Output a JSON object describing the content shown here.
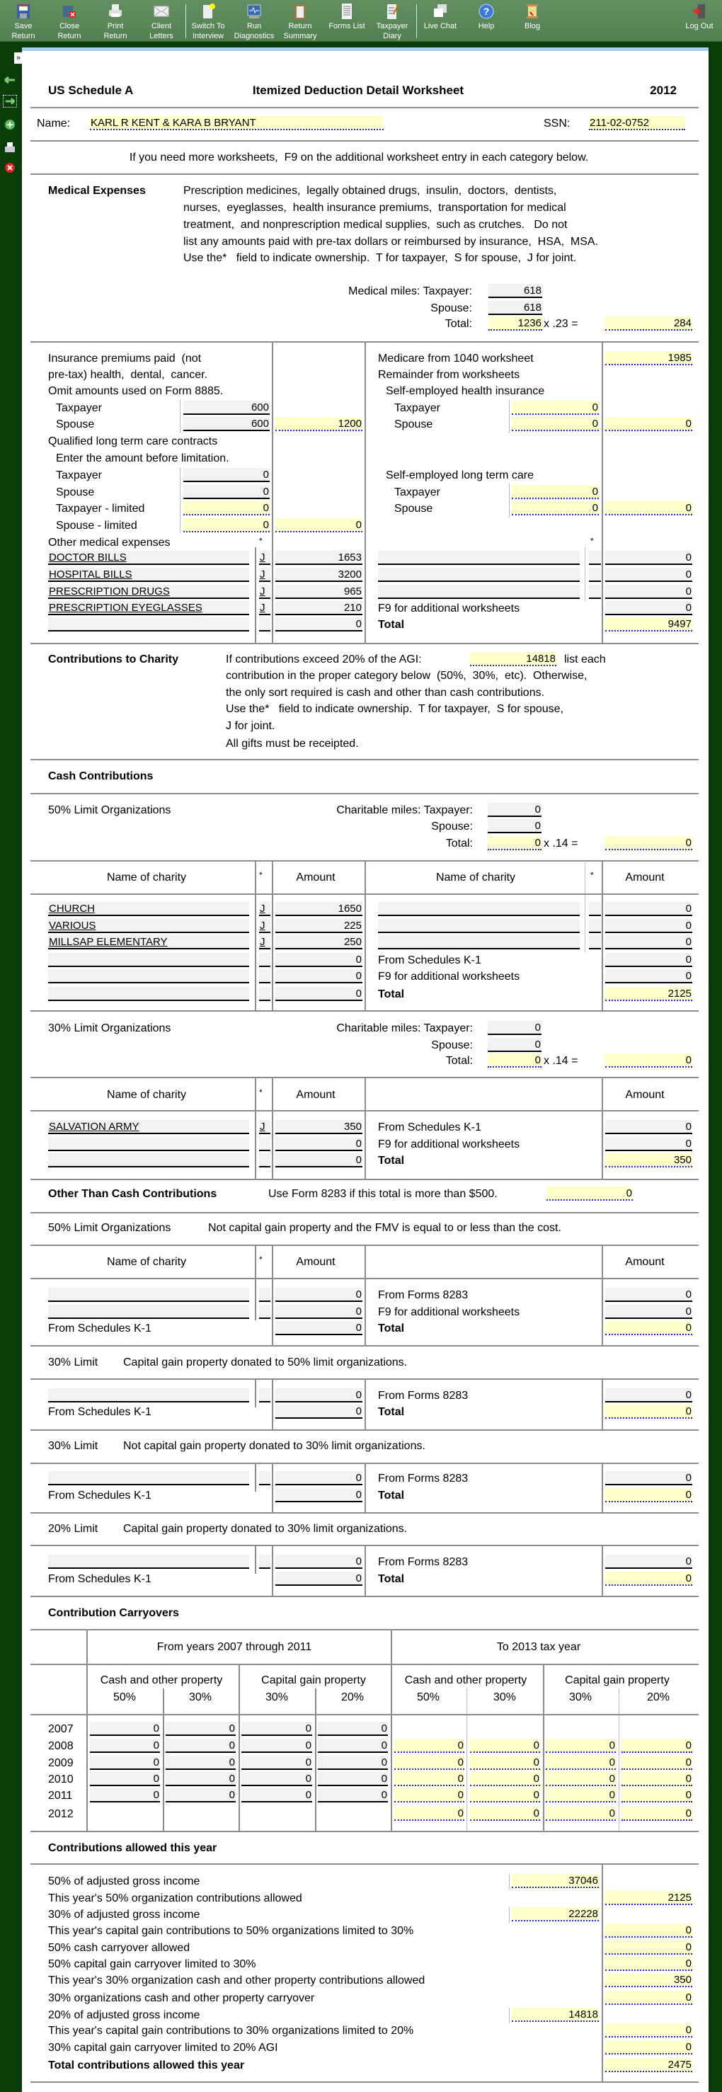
{
  "toolbar": {
    "items": [
      {
        "l1": "Save",
        "l2": "Return",
        "icon": "floppy-disk-icon"
      },
      {
        "l1": "Close",
        "l2": "Return",
        "icon": "close-folder-icon"
      },
      {
        "l1": "Print",
        "l2": "Return",
        "icon": "printer-icon"
      },
      {
        "l1": "Client",
        "l2": "Letters",
        "icon": "envelope-icon"
      },
      {
        "l1": "Switch To",
        "l2": "Interview",
        "icon": "interview-icon"
      },
      {
        "l1": "Run",
        "l2": "Diagnostics",
        "icon": "diagnostics-monitor-icon"
      },
      {
        "l1": "Return",
        "l2": "Summary",
        "icon": "clipboard-icon"
      },
      {
        "l1": "Forms List",
        "l2": "",
        "icon": "document-list-icon"
      },
      {
        "l1": "Taxpayer",
        "l2": "Diary",
        "icon": "diary-icon"
      },
      {
        "l1": "Live Chat",
        "l2": "",
        "icon": "chat-bubbles-icon"
      },
      {
        "l1": "Help",
        "l2": "",
        "icon": "help-icon"
      },
      {
        "l1": "Blog",
        "l2": "",
        "icon": "scroll-icon"
      }
    ],
    "logout": {
      "label": "Log Out",
      "icon": "exit-door-icon"
    }
  },
  "sidebar": {
    "expand": "»",
    "icons": [
      "arrow-left-icon",
      "arrow-right-icon",
      "add-icon",
      "printer-icon",
      "delete-icon"
    ]
  },
  "colors": {
    "toolbar": "#5b875b",
    "frame": "#0b3d0b",
    "calc_field": "#ffffcc",
    "input_field": "#f2f2f2",
    "calc_underline": "#2222ee"
  },
  "form": {
    "code": "US Schedule A",
    "title": "Itemized Deduction Detail Worksheet",
    "year": "2012",
    "name_label": "Name:",
    "name": "KARL R KENT & KARA B BRYANT",
    "ssn_label": "SSN:",
    "ssn": "211-02-0752",
    "instruction": "If you need more worksheets,  F9 on the additional worksheet entry in each category below."
  },
  "medical": {
    "heading": "Medical Expenses",
    "desc": [
      "Prescription medicines,  legally obtained drugs,  insulin,  doctors,  dentists,",
      "nurses,  eyeglasses,  health insurance premiums,  transportation for medical",
      "treatment,  and nonprescription medical supplies,  such as crutches.   Do not",
      "list any amounts paid with pre-tax dollars or reimbursed by insurance,  HSA,  MSA.",
      "Use the*   field to indicate ownership.  T for taxpayer,  S for spouse,  J for joint."
    ],
    "miles": {
      "tp_label": "Medical miles: Taxpayer:",
      "tp": "618",
      "sp_label": "Spouse:",
      "sp": "618",
      "total_label": "Total:",
      "total": "1236",
      "rate": "x .23 =",
      "amount": "284"
    },
    "ins": {
      "lines": [
        "Insurance premiums paid  (not",
        "pre-tax) health,  dental,  cancer.",
        "Omit amounts used on Form 8885."
      ],
      "tp_label": "Taxpayer",
      "tp": "600",
      "sp_label": "Spouse",
      "sp": "600",
      "total": "1200"
    },
    "ltc": {
      "label": "Qualified long term care contracts",
      "sub": "Enter the amount before limitation.",
      "tp_label": "Taxpayer",
      "tp": "0",
      "sp_label": "Spouse",
      "sp": "0",
      "tpl_label": "Taxpayer - limited",
      "tpl": "0",
      "spl_label": "Spouse - limited",
      "spl": "0",
      "total": "0"
    },
    "other": {
      "label": "Other medical expenses",
      "star": "*",
      "left": [
        {
          "name": "DOCTOR BILLS",
          "owner": "J",
          "amount": "1653"
        },
        {
          "name": "HOSPITAL BILLS",
          "owner": "J",
          "amount": "3200"
        },
        {
          "name": "PRESCRIPTION DRUGS",
          "owner": "J",
          "amount": "965"
        },
        {
          "name": "PRESCRIPTION EYEGLASSES",
          "owner": "J",
          "amount": "210"
        },
        {
          "name": "",
          "owner": "",
          "amount": "0"
        }
      ],
      "right": [
        {
          "name": "",
          "owner": "",
          "amount": "0"
        },
        {
          "name": "",
          "owner": "",
          "amount": "0"
        },
        {
          "name": "",
          "owner": "",
          "amount": "0"
        }
      ],
      "f9_label": "F9 for additional worksheets",
      "f9": "0",
      "total_label": "Total",
      "total": "9497"
    },
    "medicare_label": "Medicare from 1040 worksheet",
    "medicare": "1985",
    "remainder_label": "Remainder from worksheets",
    "seh": {
      "label": "Self-employed health insurance",
      "tp_label": "Taxpayer",
      "tp": "0",
      "sp_label": "Spouse",
      "sp": "0",
      "total": "0"
    },
    "seltc": {
      "label": "Self-employed long term care",
      "tp_label": "Taxpayer",
      "tp": "0",
      "sp_label": "Spouse",
      "sp": "0",
      "total": "0"
    }
  },
  "charity": {
    "heading": "Contributions to Charity",
    "line1a": "If contributions exceed 20% of the AGI:",
    "agi20": "14818",
    "line1b": "list each",
    "lines": [
      "contribution in the proper category below  (50%,  30%,  etc).  Otherwise,",
      "the only sort required is cash and other than cash contributions.",
      "Use the*   field to indicate ownership.  T for taxpayer,  S for spouse,",
      "J for joint.",
      "All gifts must be receipted."
    ]
  },
  "cash": {
    "heading": "Cash Contributions",
    "l50": {
      "label": "50% Limit Organizations",
      "miles": {
        "tp_label": "Charitable miles: Taxpayer:",
        "tp": "0",
        "sp_label": "Spouse:",
        "sp": "0",
        "total_label": "Total:",
        "total": "0",
        "rate": "x .14 =",
        "amount": "0"
      },
      "h_name": "Name of charity",
      "h_star": "*",
      "h_amount": "Amount",
      "left": [
        {
          "name": "CHURCH",
          "owner": "J",
          "amount": "1650"
        },
        {
          "name": "VARIOUS",
          "owner": "J",
          "amount": "225"
        },
        {
          "name": "MILLSAP ELEMENTARY",
          "owner": "J",
          "amount": "250"
        },
        {
          "name": "",
          "owner": "",
          "amount": "0"
        },
        {
          "name": "",
          "owner": "",
          "amount": "0"
        },
        {
          "name": "",
          "owner": "",
          "amount": "0"
        }
      ],
      "right": [
        {
          "name": "",
          "owner": "",
          "amount": "0"
        },
        {
          "name": "",
          "owner": "",
          "amount": "0"
        },
        {
          "name": "",
          "owner": "",
          "amount": "0"
        }
      ],
      "k1_label": "From Schedules K-1",
      "k1": "0",
      "f9_label": "F9 for additional worksheets",
      "f9": "0",
      "total_label": "Total",
      "total": "2125"
    },
    "l30": {
      "label": "30% Limit Organizations",
      "miles": {
        "tp_label": "Charitable miles: Taxpayer:",
        "tp": "0",
        "sp_label": "Spouse:",
        "sp": "0",
        "total_label": "Total:",
        "total": "0",
        "rate": "x .14 =",
        "amount": "0"
      },
      "h_name": "Name of charity",
      "h_star": "*",
      "h_amount": "Amount",
      "h_amount_r": "Amount",
      "left": [
        {
          "name": "SALVATION ARMY",
          "owner": "J",
          "amount": "350"
        },
        {
          "name": "",
          "owner": "",
          "amount": "0"
        },
        {
          "name": "",
          "owner": "",
          "amount": "0"
        }
      ],
      "k1_label": "From Schedules K-1",
      "k1": "0",
      "f9_label": "F9 for additional worksheets",
      "f9": "0",
      "total_label": "Total",
      "total": "350"
    }
  },
  "noncash": {
    "heading": "Other Than Cash Contributions",
    "note": "Use Form 8283 if this total is more than $500.",
    "total": "0",
    "l50": {
      "label": "50% Limit Organizations",
      "desc": "Not capital gain property and the FMV is equal to or less than the cost.",
      "h_name": "Name of charity",
      "h_star": "*",
      "h_amount": "Amount",
      "h_amount_r": "Amount",
      "left": [
        {
          "name": "",
          "owner": "",
          "amount": "0"
        },
        {
          "name": "",
          "owner": "",
          "amount": "0"
        }
      ],
      "k1_label": "From Schedules K-1",
      "k1": "0",
      "f8283_label": "From Forms 8283",
      "f8283": "0",
      "f9_label": "F9 for additional worksheets",
      "f9": "0",
      "total_label": "Total",
      "total": "0"
    },
    "l30a": {
      "label": "30% Limit",
      "desc": "Capital gain property donated to 50% limit organizations.",
      "left": [
        {
          "name": "",
          "owner": "",
          "amount": "0"
        }
      ],
      "k1_label": "From Schedules K-1",
      "k1": "0",
      "f8283_label": "From Forms 8283",
      "f8283": "0",
      "total_label": "Total",
      "total": "0"
    },
    "l30b": {
      "label": "30% Limit",
      "desc": "Not capital gain property donated to 30% limit organizations.",
      "left": [
        {
          "name": "",
          "owner": "",
          "amount": "0"
        }
      ],
      "k1_label": "From Schedules K-1",
      "k1": "0",
      "f8283_label": "From Forms 8283",
      "f8283": "0",
      "total_label": "Total",
      "total": "0"
    },
    "l20": {
      "label": "20% Limit",
      "desc": "Capital gain property donated to 30% limit organizations.",
      "left": [
        {
          "name": "",
          "owner": "",
          "amount": "0"
        }
      ],
      "k1_label": "From Schedules K-1",
      "k1": "0",
      "f8283_label": "From Forms 8283",
      "f8283": "0",
      "total_label": "Total",
      "total": "0"
    }
  },
  "carry": {
    "heading": "Contribution Carryovers",
    "from_header": "From years 2007 through 2011",
    "to_header": "To 2013 tax year",
    "groups": [
      "Cash and other property",
      "Capital gain property",
      "Cash and other property",
      "Capital gain property"
    ],
    "pcts": [
      "50%",
      "30%",
      "30%",
      "20%",
      "50%",
      "30%",
      "30%",
      "20%"
    ],
    "rows": [
      {
        "year": "2007",
        "from": [
          "0",
          "0",
          "0",
          "0"
        ],
        "to": []
      },
      {
        "year": "2008",
        "from": [
          "0",
          "0",
          "0",
          "0"
        ],
        "to": [
          "0",
          "0",
          "0",
          "0"
        ]
      },
      {
        "year": "2009",
        "from": [
          "0",
          "0",
          "0",
          "0"
        ],
        "to": [
          "0",
          "0",
          "0",
          "0"
        ]
      },
      {
        "year": "2010",
        "from": [
          "0",
          "0",
          "0",
          "0"
        ],
        "to": [
          "0",
          "0",
          "0",
          "0"
        ]
      },
      {
        "year": "2011",
        "from": [
          "0",
          "0",
          "0",
          "0"
        ],
        "to": [
          "0",
          "0",
          "0",
          "0"
        ]
      },
      {
        "year": "2012",
        "from": [],
        "to": [
          "0",
          "0",
          "0",
          "0"
        ]
      }
    ]
  },
  "allowed": {
    "heading": "Contributions allowed this year",
    "rows": [
      {
        "label": "50% of adjusted gross income",
        "value": "37046",
        "col": "mid"
      },
      {
        "label": "This year's 50% organization contributions allowed",
        "value": "2125",
        "col": "right"
      },
      {
        "label": "30% of adjusted gross income",
        "value": "22228",
        "col": "mid"
      },
      {
        "label": "This year's capital gain contributions to 50% organizations limited to 30%",
        "value": "0",
        "col": "right"
      },
      {
        "label": "50% cash carryover allowed",
        "value": "0",
        "col": "right"
      },
      {
        "label": "50% capital gain carryover limited to 30%",
        "value": "0",
        "col": "right"
      },
      {
        "label": "This year's 30% organization cash and other property contributions allowed",
        "value": "350",
        "col": "right"
      },
      {
        "label": "30% organizations cash and other property carryover",
        "value": "0",
        "col": "right"
      },
      {
        "label": "20% of adjusted gross income",
        "value": "14818",
        "col": "mid"
      },
      {
        "label": "This year's capital gain contributions to 30% organizations limited to 20%",
        "value": "0",
        "col": "right"
      },
      {
        "label": "30% capital gain carryover limited to 20% AGI",
        "value": "0",
        "col": "right"
      },
      {
        "label": "Total contributions allowed this year",
        "value": "2475",
        "col": "right",
        "bold": true
      }
    ]
  }
}
